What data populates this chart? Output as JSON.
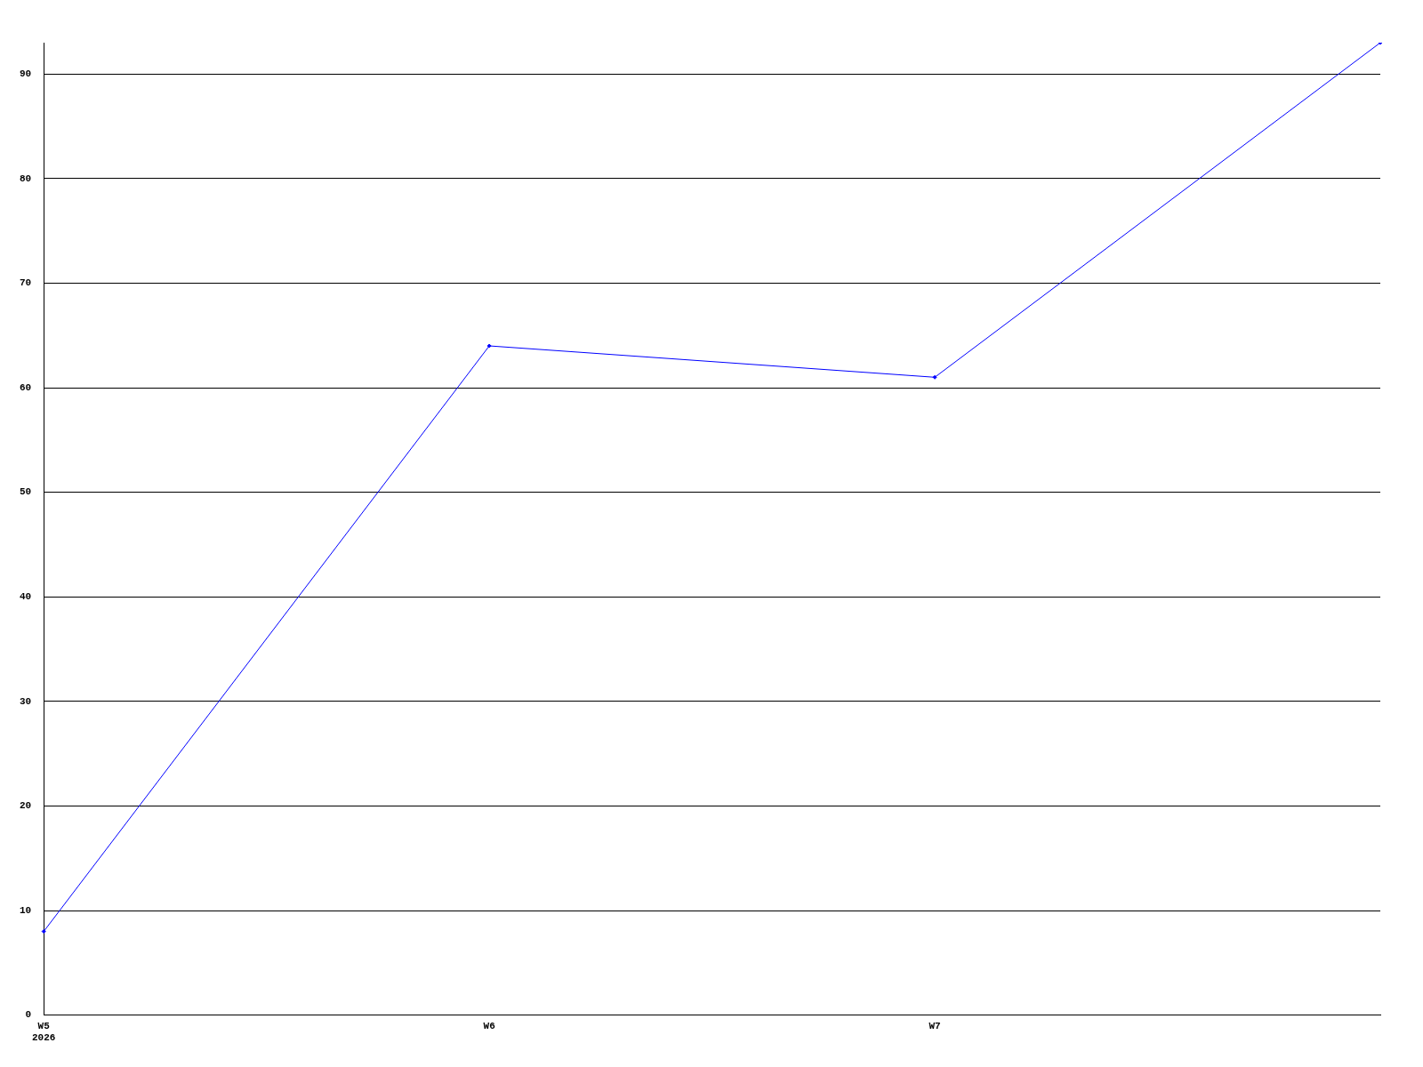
{
  "chart_data": {
    "type": "line",
    "categories": [
      "W5\n2026",
      "W6",
      "W7",
      null
    ],
    "series": [
      {
        "color": "#0000ff",
        "values": [
          8,
          64,
          61,
          93
        ]
      }
    ],
    "ylim": [
      0,
      93
    ],
    "yticks": [
      0,
      10,
      20,
      30,
      40,
      50,
      60,
      70,
      80,
      90
    ],
    "grid": "y",
    "legend": false,
    "marker": "diamond",
    "line_style": "solid"
  }
}
